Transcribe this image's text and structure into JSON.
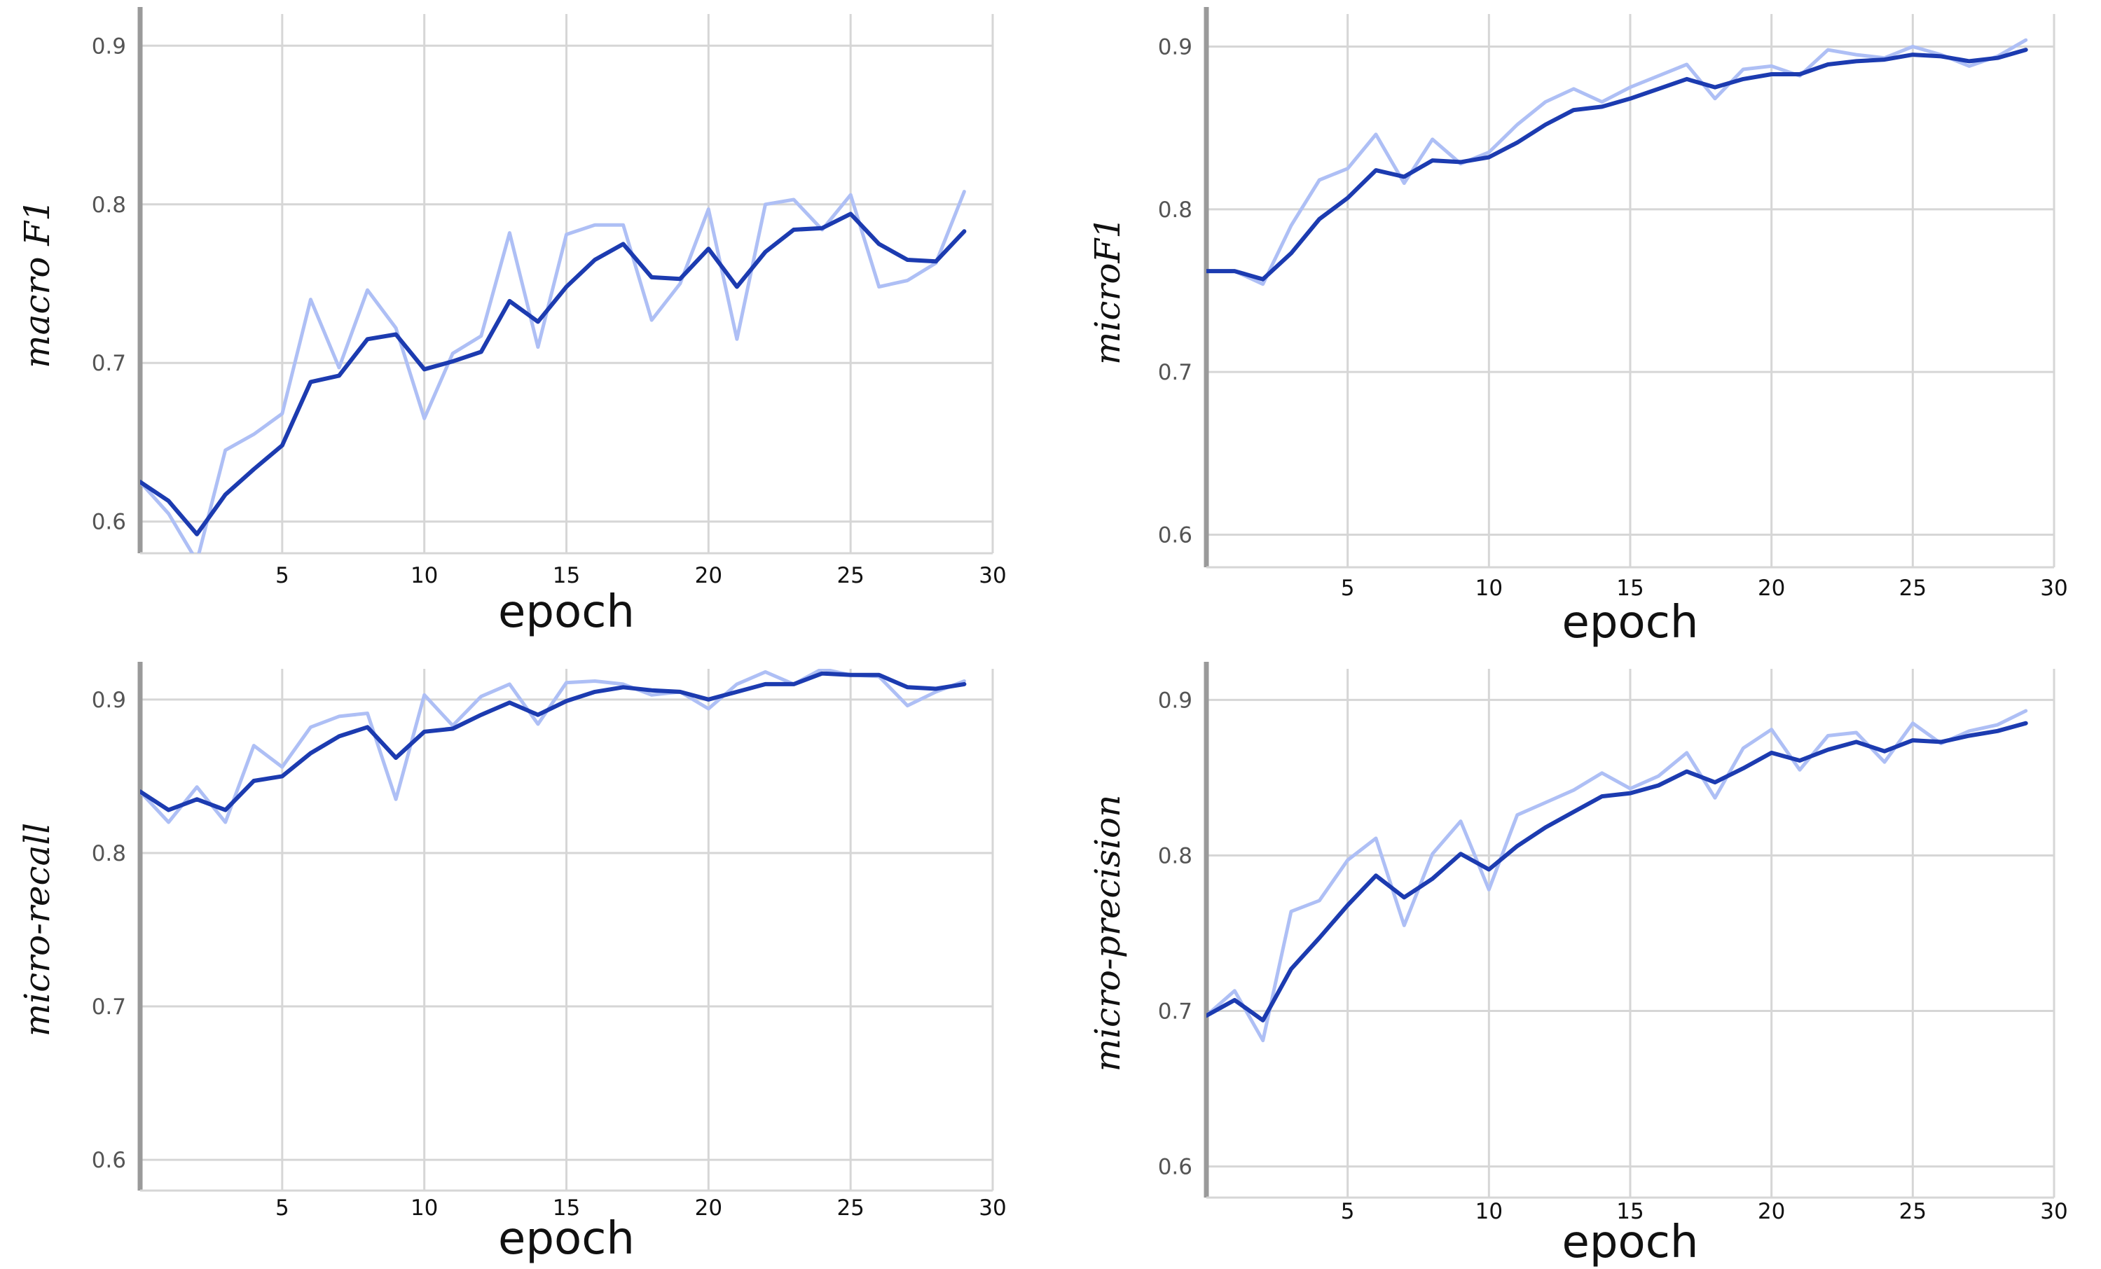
{
  "colors": {
    "smoothed": "#1c3bb0",
    "raw": "#aebff5",
    "grid": "#d6d6d6",
    "axis": "#9a9a9a",
    "tick_text": "#555555",
    "label_text": "#111111"
  },
  "chart_data": [
    {
      "type": "line",
      "xlabel": "epoch",
      "ylabel": "macro F1",
      "xlim": [
        0,
        30
      ],
      "ylim": [
        0.58,
        0.92
      ],
      "xticks": [
        5,
        10,
        15,
        20,
        25,
        30
      ],
      "yticks": [
        0.6,
        0.7,
        0.8,
        0.9
      ],
      "grid": true,
      "series": [
        {
          "role": "raw",
          "x": [
            0,
            1,
            2,
            3,
            4,
            5,
            6,
            7,
            8,
            9,
            10,
            11,
            12,
            13,
            14,
            15,
            16,
            17,
            18,
            19,
            20,
            21,
            22,
            23,
            24,
            25,
            26,
            27,
            28,
            29
          ],
          "values": [
            0.625,
            0.605,
            0.575,
            0.645,
            0.655,
            0.668,
            0.74,
            0.697,
            0.746,
            0.722,
            0.665,
            0.706,
            0.717,
            0.782,
            0.71,
            0.781,
            0.787,
            0.787,
            0.727,
            0.75,
            0.797,
            0.715,
            0.8,
            0.803,
            0.784,
            0.806,
            0.748,
            0.752,
            0.763,
            0.808
          ]
        },
        {
          "role": "smoothed",
          "x": [
            0,
            1,
            2,
            3,
            4,
            5,
            6,
            7,
            8,
            9,
            10,
            11,
            12,
            13,
            14,
            15,
            16,
            17,
            18,
            19,
            20,
            21,
            22,
            23,
            24,
            25,
            26,
            27,
            28,
            29
          ],
          "values": [
            0.625,
            0.613,
            0.592,
            0.617,
            0.633,
            0.648,
            0.688,
            0.692,
            0.715,
            0.718,
            0.696,
            0.701,
            0.707,
            0.739,
            0.726,
            0.748,
            0.765,
            0.775,
            0.754,
            0.753,
            0.772,
            0.748,
            0.77,
            0.784,
            0.785,
            0.794,
            0.775,
            0.765,
            0.764,
            0.783
          ]
        }
      ]
    },
    {
      "type": "line",
      "xlabel": "epoch",
      "ylabel": "microF1",
      "xlim": [
        0,
        30
      ],
      "ylim": [
        0.58,
        0.92
      ],
      "xticks": [
        5,
        10,
        15,
        20,
        25,
        30
      ],
      "yticks": [
        0.6,
        0.7,
        0.8,
        0.9
      ],
      "grid": true,
      "series": [
        {
          "role": "raw",
          "x": [
            0,
            1,
            2,
            3,
            4,
            5,
            6,
            7,
            8,
            9,
            10,
            11,
            12,
            13,
            14,
            15,
            16,
            17,
            18,
            19,
            20,
            21,
            22,
            23,
            24,
            25,
            26,
            27,
            28,
            29
          ],
          "values": [
            0.762,
            0.762,
            0.754,
            0.79,
            0.818,
            0.825,
            0.846,
            0.816,
            0.843,
            0.828,
            0.835,
            0.852,
            0.866,
            0.874,
            0.866,
            0.875,
            0.882,
            0.889,
            0.868,
            0.886,
            0.888,
            0.882,
            0.898,
            0.895,
            0.893,
            0.9,
            0.895,
            0.888,
            0.894,
            0.904
          ]
        },
        {
          "role": "smoothed",
          "x": [
            0,
            1,
            2,
            3,
            4,
            5,
            6,
            7,
            8,
            9,
            10,
            11,
            12,
            13,
            14,
            15,
            16,
            17,
            18,
            19,
            20,
            21,
            22,
            23,
            24,
            25,
            26,
            27,
            28,
            29
          ],
          "values": [
            0.762,
            0.762,
            0.757,
            0.773,
            0.794,
            0.807,
            0.824,
            0.82,
            0.83,
            0.829,
            0.832,
            0.841,
            0.852,
            0.861,
            0.863,
            0.868,
            0.874,
            0.88,
            0.875,
            0.88,
            0.883,
            0.883,
            0.889,
            0.891,
            0.892,
            0.895,
            0.894,
            0.891,
            0.893,
            0.898
          ]
        }
      ]
    },
    {
      "type": "line",
      "xlabel": "epoch",
      "ylabel": "micro-recall",
      "xlim": [
        0,
        30
      ],
      "ylim": [
        0.58,
        0.92
      ],
      "xticks": [
        5,
        10,
        15,
        20,
        25,
        30
      ],
      "yticks": [
        0.6,
        0.7,
        0.8,
        0.9
      ],
      "grid": true,
      "series": [
        {
          "role": "raw",
          "x": [
            0,
            1,
            2,
            3,
            4,
            5,
            6,
            7,
            8,
            9,
            10,
            11,
            12,
            13,
            14,
            15,
            16,
            17,
            18,
            19,
            20,
            21,
            22,
            23,
            24,
            25,
            26,
            27,
            28,
            29
          ],
          "values": [
            0.84,
            0.82,
            0.843,
            0.82,
            0.87,
            0.856,
            0.882,
            0.889,
            0.891,
            0.835,
            0.903,
            0.883,
            0.902,
            0.91,
            0.884,
            0.911,
            0.912,
            0.91,
            0.903,
            0.905,
            0.894,
            0.91,
            0.918,
            0.91,
            0.92,
            0.916,
            0.915,
            0.896,
            0.905,
            0.912
          ]
        },
        {
          "role": "smoothed",
          "x": [
            0,
            1,
            2,
            3,
            4,
            5,
            6,
            7,
            8,
            9,
            10,
            11,
            12,
            13,
            14,
            15,
            16,
            17,
            18,
            19,
            20,
            21,
            22,
            23,
            24,
            25,
            26,
            27,
            28,
            29
          ],
          "values": [
            0.84,
            0.828,
            0.835,
            0.828,
            0.847,
            0.85,
            0.865,
            0.876,
            0.882,
            0.862,
            0.879,
            0.881,
            0.89,
            0.898,
            0.89,
            0.899,
            0.905,
            0.908,
            0.906,
            0.905,
            0.9,
            0.905,
            0.91,
            0.91,
            0.917,
            0.916,
            0.916,
            0.908,
            0.907,
            0.91
          ]
        }
      ]
    },
    {
      "type": "line",
      "xlabel": "epoch",
      "ylabel": "micro-precision",
      "xlim": [
        0,
        30
      ],
      "ylim": [
        0.58,
        0.92
      ],
      "xticks": [
        5,
        10,
        15,
        20,
        25,
        30
      ],
      "yticks": [
        0.6,
        0.7,
        0.8,
        0.9
      ],
      "grid": true,
      "series": [
        {
          "role": "raw",
          "x": [
            0,
            1,
            2,
            3,
            4,
            5,
            6,
            7,
            8,
            9,
            10,
            11,
            12,
            13,
            14,
            15,
            16,
            17,
            18,
            19,
            20,
            21,
            22,
            23,
            24,
            25,
            26,
            27,
            28,
            29
          ],
          "values": [
            0.697,
            0.713,
            0.681,
            0.764,
            0.771,
            0.797,
            0.811,
            0.755,
            0.801,
            0.822,
            0.778,
            0.826,
            0.834,
            0.842,
            0.853,
            0.843,
            0.851,
            0.866,
            0.837,
            0.869,
            0.881,
            0.855,
            0.877,
            0.879,
            0.86,
            0.885,
            0.872,
            0.88,
            0.884,
            0.893
          ]
        },
        {
          "role": "smoothed",
          "x": [
            0,
            1,
            2,
            3,
            4,
            5,
            6,
            7,
            8,
            9,
            10,
            11,
            12,
            13,
            14,
            15,
            16,
            17,
            18,
            19,
            20,
            21,
            22,
            23,
            24,
            25,
            26,
            27,
            28,
            29
          ],
          "values": [
            0.697,
            0.707,
            0.694,
            0.727,
            0.747,
            0.768,
            0.787,
            0.773,
            0.785,
            0.801,
            0.791,
            0.806,
            0.818,
            0.828,
            0.838,
            0.84,
            0.845,
            0.854,
            0.847,
            0.856,
            0.866,
            0.861,
            0.868,
            0.873,
            0.867,
            0.874,
            0.873,
            0.877,
            0.88,
            0.885
          ]
        }
      ]
    }
  ]
}
